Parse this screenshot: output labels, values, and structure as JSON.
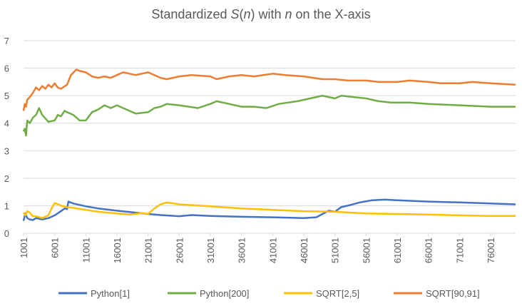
{
  "chart_data": {
    "type": "line",
    "title": {
      "prefix": "Standardized ",
      "s": "S",
      "paren_open": "(",
      "n": "n",
      "paren_close": ")",
      "middle": " with ",
      "n2": "n",
      "suffix": " on the X-axis"
    },
    "xlabel": "",
    "ylabel": "",
    "xlim": [
      1001,
      80001
    ],
    "ylim": [
      0,
      7
    ],
    "grid": true,
    "legend_position": "bottom",
    "x_ticks": [
      "1001",
      "6001",
      "11001",
      "16001",
      "21001",
      "26001",
      "31001",
      "36001",
      "41001",
      "46001",
      "51001",
      "56001",
      "61001",
      "66001",
      "71001",
      "76001"
    ],
    "y_ticks": [
      "0",
      "1",
      "2",
      "3",
      "4",
      "5",
      "6",
      "7"
    ],
    "series": [
      {
        "name": "Python[1]",
        "color": "#4472C4",
        "points": [
          [
            1001,
            0.45
          ],
          [
            1301,
            0.72
          ],
          [
            1601,
            0.55
          ],
          [
            2001,
            0.5
          ],
          [
            2501,
            0.48
          ],
          [
            3001,
            0.55
          ],
          [
            4001,
            0.5
          ],
          [
            5001,
            0.55
          ],
          [
            6001,
            0.65
          ],
          [
            7001,
            0.8
          ],
          [
            7601,
            0.9
          ],
          [
            8001,
            0.88
          ],
          [
            8201,
            1.15
          ],
          [
            9001,
            1.08
          ],
          [
            11001,
            0.98
          ],
          [
            13001,
            0.9
          ],
          [
            16001,
            0.82
          ],
          [
            19001,
            0.75
          ],
          [
            21001,
            0.7
          ],
          [
            23001,
            0.66
          ],
          [
            26001,
            0.62
          ],
          [
            28001,
            0.66
          ],
          [
            31001,
            0.63
          ],
          [
            36001,
            0.6
          ],
          [
            41001,
            0.58
          ],
          [
            46001,
            0.55
          ],
          [
            48001,
            0.58
          ],
          [
            49001,
            0.7
          ],
          [
            50001,
            0.82
          ],
          [
            51001,
            0.78
          ],
          [
            52001,
            0.95
          ],
          [
            53001,
            1.0
          ],
          [
            55001,
            1.12
          ],
          [
            57001,
            1.2
          ],
          [
            59001,
            1.22
          ],
          [
            61001,
            1.2
          ],
          [
            63001,
            1.18
          ],
          [
            66001,
            1.15
          ],
          [
            71001,
            1.12
          ],
          [
            76001,
            1.08
          ],
          [
            80001,
            1.05
          ]
        ]
      },
      {
        "name": "Python[200]",
        "color": "#70AD47",
        "points": [
          [
            1001,
            3.7
          ],
          [
            1201,
            3.8
          ],
          [
            1401,
            3.55
          ],
          [
            1601,
            4.1
          ],
          [
            2001,
            4.0
          ],
          [
            2501,
            4.2
          ],
          [
            3001,
            4.3
          ],
          [
            3501,
            4.55
          ],
          [
            4001,
            4.3
          ],
          [
            5001,
            4.05
          ],
          [
            6001,
            4.1
          ],
          [
            6501,
            4.3
          ],
          [
            7001,
            4.25
          ],
          [
            7601,
            4.45
          ],
          [
            8001,
            4.4
          ],
          [
            9001,
            4.3
          ],
          [
            10001,
            4.1
          ],
          [
            11001,
            4.1
          ],
          [
            12001,
            4.4
          ],
          [
            13001,
            4.5
          ],
          [
            14001,
            4.65
          ],
          [
            15001,
            4.55
          ],
          [
            16001,
            4.65
          ],
          [
            17001,
            4.55
          ],
          [
            19001,
            4.35
          ],
          [
            21001,
            4.4
          ],
          [
            22001,
            4.55
          ],
          [
            23001,
            4.6
          ],
          [
            24001,
            4.7
          ],
          [
            26001,
            4.65
          ],
          [
            29001,
            4.55
          ],
          [
            31001,
            4.7
          ],
          [
            32001,
            4.8
          ],
          [
            34001,
            4.7
          ],
          [
            36001,
            4.6
          ],
          [
            38001,
            4.6
          ],
          [
            40001,
            4.55
          ],
          [
            42001,
            4.7
          ],
          [
            45001,
            4.8
          ],
          [
            47001,
            4.9
          ],
          [
            49001,
            5.0
          ],
          [
            51001,
            4.9
          ],
          [
            52001,
            5.0
          ],
          [
            54001,
            4.95
          ],
          [
            56001,
            4.9
          ],
          [
            58001,
            4.8
          ],
          [
            60001,
            4.75
          ],
          [
            63001,
            4.75
          ],
          [
            66001,
            4.7
          ],
          [
            71001,
            4.65
          ],
          [
            76001,
            4.6
          ],
          [
            80001,
            4.6
          ]
        ]
      },
      {
        "name": "SQRT[2,5]",
        "color": "#FFC000",
        "points": [
          [
            1001,
            0.75
          ],
          [
            1301,
            0.65
          ],
          [
            1601,
            0.8
          ],
          [
            2001,
            0.75
          ],
          [
            2501,
            0.62
          ],
          [
            3001,
            0.62
          ],
          [
            4001,
            0.55
          ],
          [
            5001,
            0.65
          ],
          [
            5601,
            0.95
          ],
          [
            6001,
            1.1
          ],
          [
            6601,
            1.05
          ],
          [
            7001,
            1.0
          ],
          [
            8001,
            0.95
          ],
          [
            9001,
            0.92
          ],
          [
            11001,
            0.85
          ],
          [
            13001,
            0.78
          ],
          [
            16001,
            0.72
          ],
          [
            18001,
            0.68
          ],
          [
            20001,
            0.73
          ],
          [
            21001,
            0.7
          ],
          [
            22001,
            0.9
          ],
          [
            23001,
            1.05
          ],
          [
            24001,
            1.12
          ],
          [
            26001,
            1.05
          ],
          [
            31001,
            0.98
          ],
          [
            36001,
            0.9
          ],
          [
            41001,
            0.85
          ],
          [
            46001,
            0.8
          ],
          [
            51001,
            0.78
          ],
          [
            56001,
            0.72
          ],
          [
            61001,
            0.7
          ],
          [
            66001,
            0.68
          ],
          [
            71001,
            0.65
          ],
          [
            76001,
            0.63
          ],
          [
            80001,
            0.63
          ]
        ]
      },
      {
        "name": "SQRT[90,91]",
        "color": "#ED7D31",
        "points": [
          [
            1001,
            4.45
          ],
          [
            1201,
            4.7
          ],
          [
            1401,
            4.6
          ],
          [
            1601,
            4.85
          ],
          [
            2001,
            4.95
          ],
          [
            2501,
            5.1
          ],
          [
            3001,
            5.3
          ],
          [
            3501,
            5.2
          ],
          [
            4001,
            5.35
          ],
          [
            4501,
            5.25
          ],
          [
            5001,
            5.4
          ],
          [
            5501,
            5.3
          ],
          [
            6001,
            5.45
          ],
          [
            6501,
            5.3
          ],
          [
            7001,
            5.25
          ],
          [
            8001,
            5.4
          ],
          [
            8601,
            5.75
          ],
          [
            9501,
            5.95
          ],
          [
            10001,
            5.9
          ],
          [
            11001,
            5.85
          ],
          [
            12001,
            5.7
          ],
          [
            13001,
            5.65
          ],
          [
            14001,
            5.7
          ],
          [
            15001,
            5.65
          ],
          [
            16001,
            5.75
          ],
          [
            17001,
            5.85
          ],
          [
            19001,
            5.75
          ],
          [
            21001,
            5.85
          ],
          [
            23001,
            5.65
          ],
          [
            24001,
            5.6
          ],
          [
            26001,
            5.7
          ],
          [
            28001,
            5.75
          ],
          [
            31001,
            5.7
          ],
          [
            32001,
            5.6
          ],
          [
            34001,
            5.7
          ],
          [
            36001,
            5.75
          ],
          [
            38001,
            5.7
          ],
          [
            41001,
            5.8
          ],
          [
            43001,
            5.75
          ],
          [
            46001,
            5.7
          ],
          [
            49001,
            5.6
          ],
          [
            51001,
            5.6
          ],
          [
            53001,
            5.55
          ],
          [
            56001,
            5.55
          ],
          [
            58001,
            5.5
          ],
          [
            61001,
            5.5
          ],
          [
            63001,
            5.55
          ],
          [
            66001,
            5.5
          ],
          [
            68001,
            5.45
          ],
          [
            71001,
            5.45
          ],
          [
            73001,
            5.5
          ],
          [
            76001,
            5.45
          ],
          [
            80001,
            5.4
          ]
        ]
      }
    ]
  }
}
